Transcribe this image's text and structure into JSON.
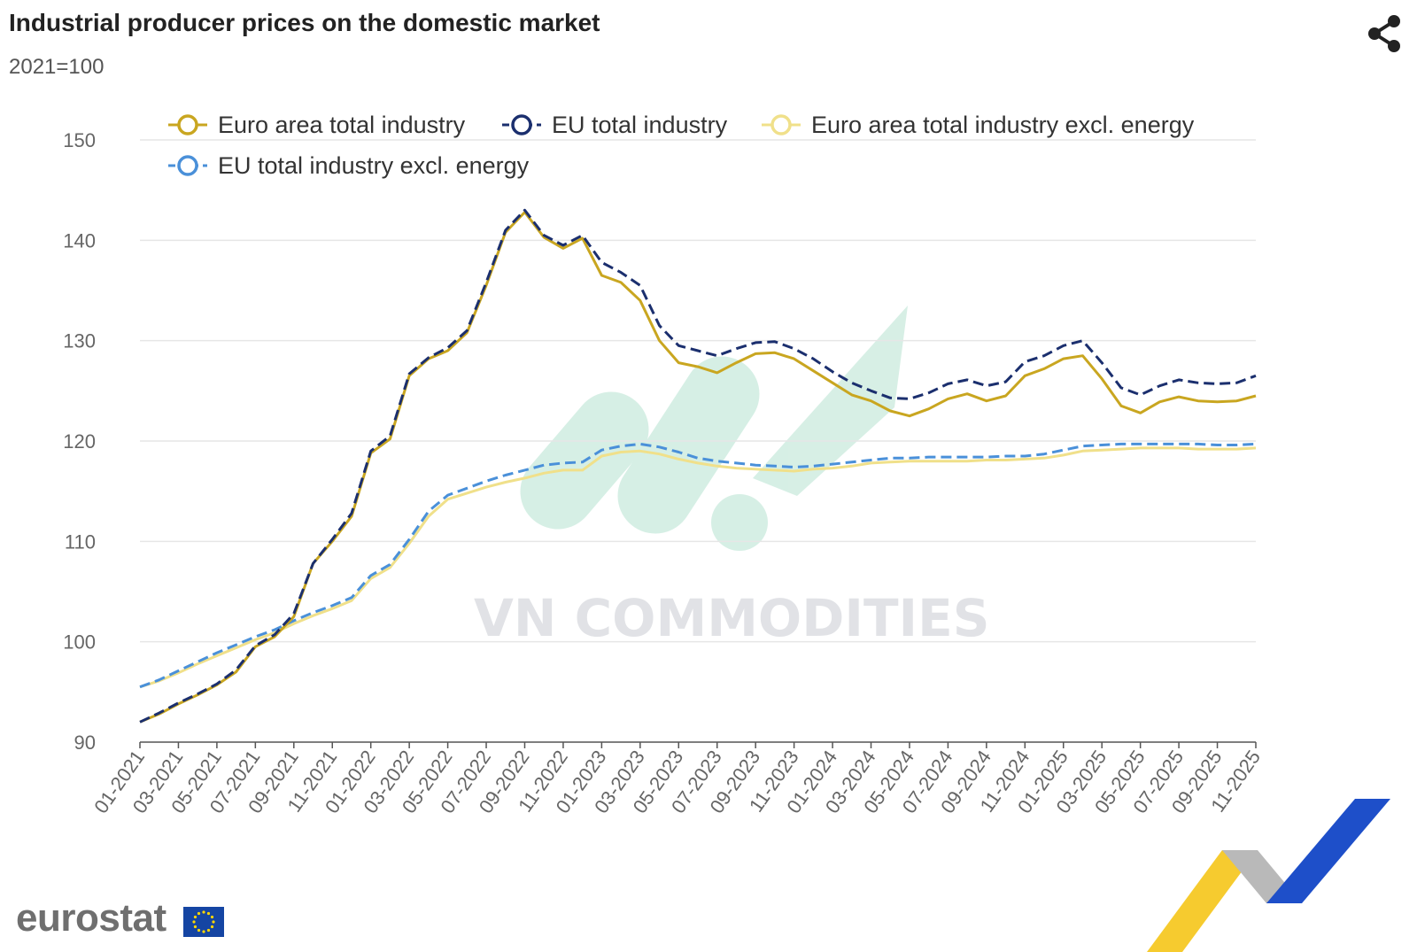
{
  "header": {
    "title": "Industrial producer prices on the domestic market",
    "subtitle": "2021=100",
    "share_icon": "share-icon"
  },
  "watermark": {
    "text": "VN COMMODITIES"
  },
  "footer": {
    "brand": "eurostat",
    "flag_icon": "eu-flag-icon"
  },
  "colors": {
    "euro_area_total": "#c9a620",
    "eu_total": "#1b2f6e",
    "euro_area_excl_energy": "#f0e08a",
    "eu_excl_energy": "#4a90d9",
    "grid": "#e6e6e6"
  },
  "chart_data": {
    "type": "line",
    "title": "Industrial producer prices on the domestic market",
    "subtitle": "2021=100",
    "ylim": [
      90,
      150
    ],
    "yticks": [
      90,
      100,
      110,
      120,
      130,
      140,
      150
    ],
    "xtick_labels": [
      "01-2021",
      "03-2021",
      "05-2021",
      "07-2021",
      "09-2021",
      "11-2021",
      "01-2022",
      "03-2022",
      "05-2022",
      "07-2022",
      "09-2022",
      "11-2022",
      "01-2023",
      "03-2023",
      "05-2023",
      "07-2023",
      "09-2023",
      "11-2023",
      "01-2024",
      "03-2024",
      "05-2024",
      "07-2024",
      "09-2024",
      "11-2024",
      "01-2025",
      "03-2025",
      "05-2025",
      "07-2025",
      "09-2025",
      "11-2025"
    ],
    "legend_position": "top",
    "grid": true,
    "series": [
      {
        "name": "Euro area total industry",
        "color": "#c9a620",
        "dash": false,
        "values": [
          92.0,
          92.8,
          93.8,
          94.7,
          95.7,
          97.0,
          99.5,
          100.5,
          102.5,
          107.8,
          110.0,
          112.5,
          118.8,
          120.2,
          126.5,
          128.2,
          129.0,
          130.8,
          135.5,
          140.8,
          142.8,
          140.3,
          139.2,
          140.2,
          136.5,
          135.8,
          134.0,
          130.0,
          127.8,
          127.4,
          126.8,
          127.8,
          128.7,
          128.8,
          128.2,
          127.0,
          125.8,
          124.6,
          124.0,
          123.0,
          122.5,
          123.2,
          124.2,
          124.7,
          124.0,
          124.5,
          126.5,
          127.2,
          128.2,
          128.5,
          126.2,
          123.5,
          122.8,
          123.9,
          124.4,
          124.0,
          123.9,
          124.0,
          124.5
        ]
      },
      {
        "name": "EU total industry",
        "color": "#1b2f6e",
        "dash": true,
        "values": [
          92.0,
          92.9,
          93.9,
          94.8,
          95.8,
          97.2,
          99.6,
          100.7,
          102.8,
          107.8,
          110.2,
          112.8,
          119.0,
          120.5,
          126.7,
          128.3,
          129.3,
          131.0,
          135.8,
          141.0,
          143.0,
          140.5,
          139.5,
          140.5,
          137.8,
          136.8,
          135.5,
          131.5,
          129.5,
          129.0,
          128.5,
          129.2,
          129.8,
          129.9,
          129.2,
          128.2,
          126.9,
          125.8,
          125.0,
          124.3,
          124.2,
          124.8,
          125.7,
          126.1,
          125.5,
          125.9,
          127.9,
          128.5,
          129.5,
          130.0,
          127.8,
          125.3,
          124.6,
          125.5,
          126.1,
          125.8,
          125.7,
          125.8,
          126.5
        ]
      },
      {
        "name": "Euro area total industry excl. energy",
        "color": "#f0e08a",
        "dash": false,
        "values": [
          95.5,
          96.1,
          96.9,
          97.8,
          98.6,
          99.4,
          100.2,
          100.9,
          101.8,
          102.6,
          103.3,
          104.1,
          106.3,
          107.4,
          109.8,
          112.5,
          114.2,
          114.8,
          115.4,
          115.9,
          116.3,
          116.8,
          117.1,
          117.1,
          118.5,
          118.9,
          119.0,
          118.7,
          118.2,
          117.8,
          117.5,
          117.3,
          117.2,
          117.1,
          117.0,
          117.2,
          117.3,
          117.5,
          117.8,
          117.9,
          118.0,
          118.0,
          118.0,
          118.0,
          118.1,
          118.1,
          118.2,
          118.3,
          118.6,
          119.0,
          119.1,
          119.2,
          119.3,
          119.3,
          119.3,
          119.2,
          119.2,
          119.2,
          119.3
        ]
      },
      {
        "name": "EU total industry excl. energy",
        "color": "#4a90d9",
        "dash": true,
        "values": [
          95.5,
          96.2,
          97.1,
          98.0,
          98.9,
          99.7,
          100.5,
          101.2,
          102.1,
          102.9,
          103.6,
          104.4,
          106.6,
          107.7,
          110.2,
          113.0,
          114.6,
          115.3,
          116.0,
          116.6,
          117.1,
          117.6,
          117.8,
          117.9,
          119.1,
          119.5,
          119.7,
          119.4,
          118.9,
          118.3,
          118.0,
          117.8,
          117.6,
          117.5,
          117.4,
          117.5,
          117.7,
          117.9,
          118.1,
          118.3,
          118.3,
          118.4,
          118.4,
          118.4,
          118.4,
          118.5,
          118.5,
          118.7,
          119.1,
          119.5,
          119.6,
          119.7,
          119.7,
          119.7,
          119.7,
          119.7,
          119.6,
          119.6,
          119.7
        ]
      }
    ]
  }
}
